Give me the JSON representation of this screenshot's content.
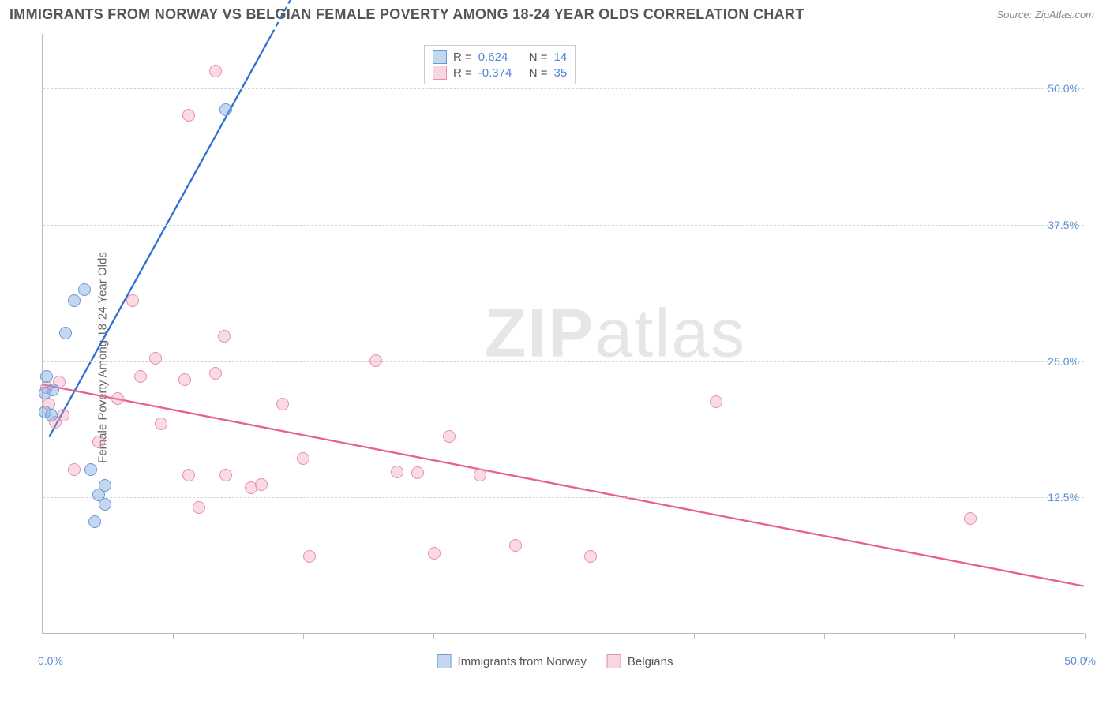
{
  "header": {
    "title": "IMMIGRANTS FROM NORWAY VS BELGIAN FEMALE POVERTY AMONG 18-24 YEAR OLDS CORRELATION CHART",
    "source": "Source: ZipAtlas.com"
  },
  "chart": {
    "type": "scatter",
    "y_axis_label": "Female Poverty Among 18-24 Year Olds",
    "x_min": 0,
    "x_max": 50,
    "y_min": 0,
    "y_max": 55,
    "y_grid": [
      12.5,
      25.0,
      37.5,
      50.0
    ],
    "y_tick_labels": [
      "12.5%",
      "25.0%",
      "37.5%",
      "50.0%"
    ],
    "x_ticks": [
      6.25,
      12.5,
      18.75,
      25.0,
      31.25,
      37.5,
      43.75,
      50.0
    ],
    "x_origin_label": "0.0%",
    "x_max_label": "50.0%",
    "background_color": "#ffffff",
    "grid_color": "#d5d5d5",
    "marker_radius": 8,
    "watermark_a": "ZIP",
    "watermark_b": "atlas",
    "series": {
      "blue": {
        "label": "Immigrants from Norway",
        "color_fill": "rgba(122,167,224,0.45)",
        "color_stroke": "#6a99d8",
        "R": "0.624",
        "N": "14",
        "trend": {
          "x1": 0.3,
          "y1": 18.0,
          "x2": 11.0,
          "y2": 55.0,
          "dash_x1": 9.5,
          "dash_y1": 50.0,
          "dash_x2": 13.0,
          "dash_y2": 62.0,
          "stroke": "#2f6fd0",
          "width": 2.3
        },
        "points": [
          {
            "x": 8.8,
            "y": 48.0
          },
          {
            "x": 2.0,
            "y": 31.5
          },
          {
            "x": 1.5,
            "y": 30.5
          },
          {
            "x": 1.1,
            "y": 27.5
          },
          {
            "x": 0.2,
            "y": 23.5
          },
          {
            "x": 0.5,
            "y": 22.3
          },
          {
            "x": 0.1,
            "y": 22.0
          },
          {
            "x": 0.1,
            "y": 20.3
          },
          {
            "x": 0.4,
            "y": 20.0
          },
          {
            "x": 2.3,
            "y": 15.0
          },
          {
            "x": 2.7,
            "y": 12.7
          },
          {
            "x": 3.0,
            "y": 11.8
          },
          {
            "x": 2.5,
            "y": 10.2
          },
          {
            "x": 3.0,
            "y": 13.5
          }
        ]
      },
      "pink": {
        "label": "Belgians",
        "color_fill": "rgba(240,150,175,0.35)",
        "color_stroke": "#e78fb0",
        "R": "-0.374",
        "N": "35",
        "trend": {
          "x1": 0.0,
          "y1": 22.8,
          "x2": 50.0,
          "y2": 4.3,
          "stroke": "#e85f94",
          "width": 2.3
        },
        "points": [
          {
            "x": 8.3,
            "y": 51.5
          },
          {
            "x": 7.0,
            "y": 47.5
          },
          {
            "x": 4.3,
            "y": 30.5
          },
          {
            "x": 8.7,
            "y": 27.2
          },
          {
            "x": 5.4,
            "y": 25.2
          },
          {
            "x": 8.3,
            "y": 23.8
          },
          {
            "x": 4.7,
            "y": 23.5
          },
          {
            "x": 6.8,
            "y": 23.2
          },
          {
            "x": 16.0,
            "y": 25.0
          },
          {
            "x": 0.8,
            "y": 23.0
          },
          {
            "x": 0.2,
            "y": 22.5
          },
          {
            "x": 0.3,
            "y": 21.0
          },
          {
            "x": 3.6,
            "y": 21.5
          },
          {
            "x": 1.0,
            "y": 20.0
          },
          {
            "x": 0.6,
            "y": 19.3
          },
          {
            "x": 11.5,
            "y": 21.0
          },
          {
            "x": 5.7,
            "y": 19.2
          },
          {
            "x": 2.7,
            "y": 17.5
          },
          {
            "x": 32.3,
            "y": 21.2
          },
          {
            "x": 19.5,
            "y": 18.0
          },
          {
            "x": 7.0,
            "y": 14.5
          },
          {
            "x": 8.8,
            "y": 14.5
          },
          {
            "x": 10.5,
            "y": 13.6
          },
          {
            "x": 12.5,
            "y": 16.0
          },
          {
            "x": 10.0,
            "y": 13.3
          },
          {
            "x": 17.0,
            "y": 14.8
          },
          {
            "x": 18.0,
            "y": 14.7
          },
          {
            "x": 21.0,
            "y": 14.5
          },
          {
            "x": 7.5,
            "y": 11.5
          },
          {
            "x": 12.8,
            "y": 7.0
          },
          {
            "x": 18.8,
            "y": 7.3
          },
          {
            "x": 22.7,
            "y": 8.0
          },
          {
            "x": 26.3,
            "y": 7.0
          },
          {
            "x": 44.5,
            "y": 10.5
          },
          {
            "x": 1.5,
            "y": 15.0
          }
        ]
      }
    },
    "legend_labels": {
      "r_prefix": "R =",
      "n_prefix": "N ="
    }
  }
}
